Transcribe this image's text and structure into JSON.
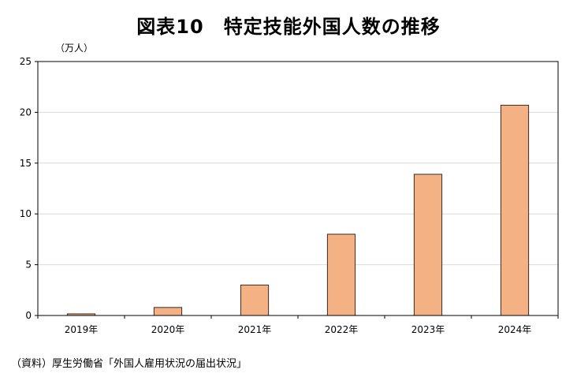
{
  "title": "図表10　特定技能外国人数の推移",
  "source": "（資料）厚生労働省「外国人雇用状況の届出状況」",
  "colors": {
    "bar_fill": "#f4b183",
    "bar_stroke": "#3a2a20",
    "grid": "#d9d9d9",
    "axis": "#000000"
  },
  "chart_data": {
    "type": "bar",
    "title": "図表10　特定技能外国人数の推移",
    "xlabel": "",
    "ylabel": "（万人）",
    "categories": [
      "2019年",
      "2020年",
      "2021年",
      "2022年",
      "2023年",
      "2024年"
    ],
    "series": [
      {
        "values": [
          0.16,
          0.79,
          3.0,
          8.0,
          13.9,
          20.7
        ]
      }
    ],
    "ylim": [
      0,
      25
    ],
    "yticks": [
      0,
      5,
      10,
      15,
      20,
      25
    ],
    "grid": true,
    "legend": "none"
  }
}
